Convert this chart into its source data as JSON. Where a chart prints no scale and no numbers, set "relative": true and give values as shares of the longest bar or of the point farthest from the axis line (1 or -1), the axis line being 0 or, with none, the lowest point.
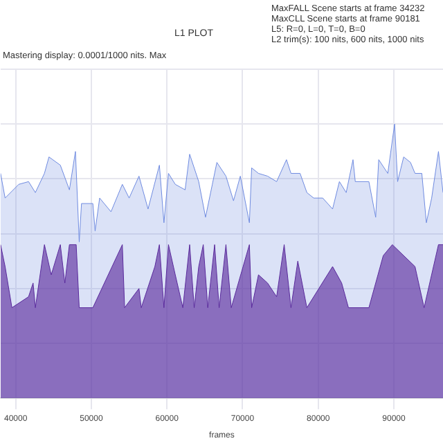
{
  "chart_data": {
    "type": "area",
    "title": "L1 PLOT",
    "xlabel": "frames",
    "relative": true,
    "grid": true,
    "legend": false,
    "annotations": [
      "MaxFALL Scene starts at frame 34232",
      "MaxCLL Scene starts at frame 90181",
      "L5: R=0, L=0, T=0, B=0",
      "L2 trim(s): 100 nits, 600 nits, 1000 nits",
      "Mastering display: 0.0001/1000 nits. Max"
    ],
    "xlim": [
      38000,
      96500
    ],
    "xticks": [
      40000,
      50000,
      60000,
      70000,
      80000,
      90000
    ],
    "series": [
      {
        "color": "#6f8be0",
        "x": [
          38000,
          38600,
          40400,
          41700,
          42600,
          43800,
          44400,
          45900,
          47100,
          47900,
          48400,
          48700,
          50200,
          50500,
          51100,
          52600,
          54100,
          55000,
          56300,
          57500,
          59000,
          59600,
          60200,
          61100,
          62400,
          63000,
          64200,
          65100,
          66000,
          66600,
          67800,
          68800,
          69700,
          70900,
          71200,
          72100,
          73300,
          74500,
          75800,
          76400,
          77600,
          78500,
          79400,
          80600,
          81900,
          82800,
          83700,
          84600,
          84900,
          86700,
          87600,
          88000,
          89200,
          90100,
          90500,
          91300,
          92200,
          92800,
          93700,
          94300,
          95000,
          95900,
          96500
        ],
        "values": [
          0.82,
          0.73,
          0.78,
          0.79,
          0.75,
          0.82,
          0.88,
          0.85,
          0.76,
          0.9,
          0.57,
          0.71,
          0.71,
          0.61,
          0.73,
          0.68,
          0.78,
          0.73,
          0.81,
          0.69,
          0.85,
          0.64,
          0.82,
          0.78,
          0.76,
          0.89,
          0.79,
          0.66,
          0.78,
          0.86,
          0.81,
          0.72,
          0.81,
          0.64,
          0.84,
          0.82,
          0.81,
          0.79,
          0.87,
          0.82,
          0.82,
          0.75,
          0.73,
          0.73,
          0.69,
          0.79,
          0.75,
          0.87,
          0.79,
          0.79,
          0.66,
          0.87,
          0.82,
          1,
          0.79,
          0.88,
          0.86,
          0.82,
          0.82,
          0.64,
          0.73,
          0.9,
          0.75
        ]
      },
      {
        "color": "#5a2a9c",
        "x": [
          38000,
          38600,
          39500,
          41700,
          42300,
          42600,
          43800,
          44700,
          45900,
          46500,
          47100,
          48000,
          48400,
          50200,
          54100,
          54400,
          56300,
          56600,
          58400,
          59000,
          59600,
          60200,
          61100,
          62100,
          63000,
          63600,
          64200,
          64800,
          65400,
          66300,
          66900,
          67800,
          68500,
          70900,
          71200,
          72100,
          73300,
          74500,
          75500,
          76400,
          77300,
          78500,
          81900,
          83100,
          84000,
          86700,
          88600,
          89800,
          92800,
          94000,
          95900,
          96500
        ],
        "values": [
          0.56,
          0.48,
          0.33,
          0.37,
          0.42,
          0.33,
          0.56,
          0.45,
          0.56,
          0.42,
          0.56,
          0.56,
          0.33,
          0.33,
          0.56,
          0.33,
          0.4,
          0.33,
          0.48,
          0.56,
          0.33,
          0.56,
          0.45,
          0.33,
          0.56,
          0.33,
          0.48,
          0.56,
          0.33,
          0.56,
          0.33,
          0.56,
          0.33,
          0.56,
          0.33,
          0.45,
          0.42,
          0.37,
          0.56,
          0.33,
          0.5,
          0.33,
          0.48,
          0.42,
          0.33,
          0.33,
          0.52,
          0.56,
          0.48,
          0.33,
          0.56,
          0.56
        ]
      }
    ]
  }
}
